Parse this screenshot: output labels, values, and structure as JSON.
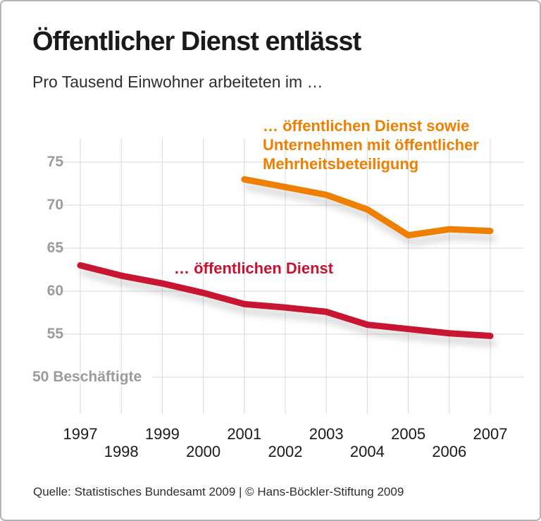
{
  "chart_data": {
    "type": "line",
    "title": "Öffentlicher Dienst entlässt",
    "subtitle": "Pro Tausend Einwohner arbeiteten im …",
    "x": [
      1997,
      1998,
      1999,
      2000,
      2001,
      2002,
      2003,
      2004,
      2005,
      2006,
      2007
    ],
    "yticks": [
      {
        "value": 75,
        "label": "75"
      },
      {
        "value": 70,
        "label": "70"
      },
      {
        "value": 65,
        "label": "65"
      },
      {
        "value": 60,
        "label": "60"
      },
      {
        "value": 55,
        "label": "55"
      },
      {
        "value": 50,
        "label": "50 Beschäftigte"
      }
    ],
    "ylim": [
      50,
      77
    ],
    "grid": true,
    "legend_position": "inline-annotations",
    "series": [
      {
        "name": "öffentlicher Dienst",
        "label": "… öffentlichen Dienst",
        "color": "#c81230",
        "x": [
          1997,
          1998,
          1999,
          2000,
          2001,
          2002,
          2003,
          2004,
          2005,
          2006,
          2007
        ],
        "values": [
          63,
          61.8,
          60.9,
          59.8,
          58.5,
          58.1,
          57.6,
          56.1,
          55.6,
          55.1,
          54.8
        ]
      },
      {
        "name": "öffentlicher Dienst sowie Unternehmen mit öffentlicher Mehrheitsbeteiligung",
        "label": "… öffentlichen Dienst sowie\nUnternehmen mit öffentlicher\nMehrheitsbeteiligung",
        "color": "#ee7f00",
        "x": [
          2001,
          2002,
          2003,
          2004,
          2005,
          2006,
          2007
        ],
        "values": [
          73,
          72.1,
          71.2,
          69.5,
          66.5,
          67.2,
          67
        ]
      }
    ],
    "grid_color": "#d9d9d9",
    "axis_label_color": "#9b9b9b"
  },
  "footer": {
    "text": "Quelle: Statistisches Bundesamt 2009 | © Hans-Böckler-Stiftung 2009"
  }
}
